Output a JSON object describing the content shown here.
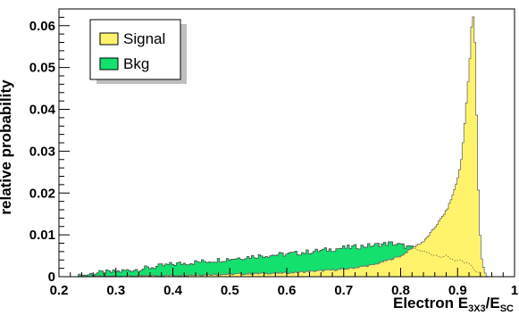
{
  "chart_data": {
    "type": "area",
    "title": "",
    "xlabel": "Electron E",
    "xlabel_sub_1": "3X3",
    "xlabel_mid": "/E",
    "xlabel_sub_2": "SC",
    "ylabel": "relative probability",
    "xlim": [
      0.2,
      1.0
    ],
    "ylim": [
      0,
      0.064
    ],
    "xticks": [
      "0.2",
      "0.3",
      "0.4",
      "0.5",
      "0.6",
      "0.7",
      "0.8",
      "0.9",
      "1"
    ],
    "yticks": [
      "0",
      "0.01",
      "0.02",
      "0.03",
      "0.04",
      "0.05",
      "0.06"
    ],
    "legend": {
      "position": "top-left",
      "entries": [
        "Signal",
        "Bkg"
      ]
    },
    "colors": {
      "signal_fill": "#fff36b",
      "signal_line": "#6b6b6b",
      "background_fill": "#14e06e",
      "background_line": "#4a4a4a"
    },
    "series": [
      {
        "name": "Signal",
        "x": [
          0.23,
          0.3,
          0.4,
          0.5,
          0.6,
          0.7,
          0.75,
          0.8,
          0.82,
          0.84,
          0.86,
          0.88,
          0.89,
          0.9,
          0.905,
          0.91,
          0.915,
          0.92,
          0.922,
          0.925,
          0.928,
          0.93,
          0.933,
          0.936,
          0.94,
          0.945,
          0.95
        ],
        "values": [
          0.0,
          0.0001,
          0.0003,
          0.0006,
          0.0009,
          0.0018,
          0.0028,
          0.005,
          0.007,
          0.0085,
          0.012,
          0.016,
          0.0195,
          0.024,
          0.028,
          0.035,
          0.043,
          0.052,
          0.058,
          0.063,
          0.06,
          0.052,
          0.032,
          0.015,
          0.005,
          0.0015,
          0.0
        ]
      },
      {
        "name": "Bkg",
        "x": [
          0.23,
          0.26,
          0.3,
          0.35,
          0.4,
          0.45,
          0.5,
          0.55,
          0.6,
          0.65,
          0.7,
          0.75,
          0.78,
          0.8,
          0.82,
          0.84,
          0.86,
          0.88,
          0.9,
          0.92,
          0.935,
          0.95
        ],
        "values": [
          0.0,
          0.0008,
          0.0012,
          0.002,
          0.003,
          0.0036,
          0.0043,
          0.005,
          0.0054,
          0.0061,
          0.0069,
          0.0075,
          0.008,
          0.0075,
          0.0068,
          0.006,
          0.0052,
          0.0048,
          0.0038,
          0.003,
          0.001,
          0.0
        ]
      }
    ]
  }
}
